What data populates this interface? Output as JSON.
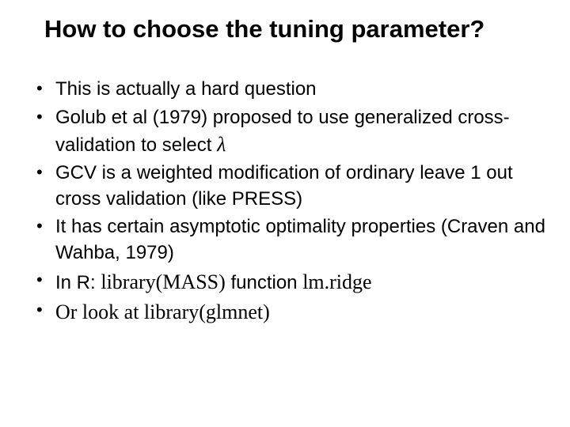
{
  "title": "How to choose the tuning parameter?",
  "bullets": {
    "b0": "This is actually a hard question",
    "b1_a": "Golub et al (1979) proposed to use generalized cross-validation to select ",
    "b1_lambda": "λ",
    "b2": "GCV is a weighted modification of ordinary leave 1 out cross validation (like PRESS)",
    "b3": "It has certain asymptotic optimality properties (Craven and Wahba, 1979)",
    "b4_a": "In R: ",
    "b4_code1": "library(MASS)",
    "b4_b": " function ",
    "b4_code2": "lm.ridge",
    "b5_code": "Or look at library(glmnet)"
  },
  "styling": {
    "background_color": "#ffffff",
    "text_color": "#000000",
    "title_fontsize": 31,
    "title_weight": "bold",
    "body_fontsize": 24,
    "font_family": "Arial",
    "code_font_family": "Times New Roman",
    "slide_width": 720,
    "slide_height": 540
  }
}
